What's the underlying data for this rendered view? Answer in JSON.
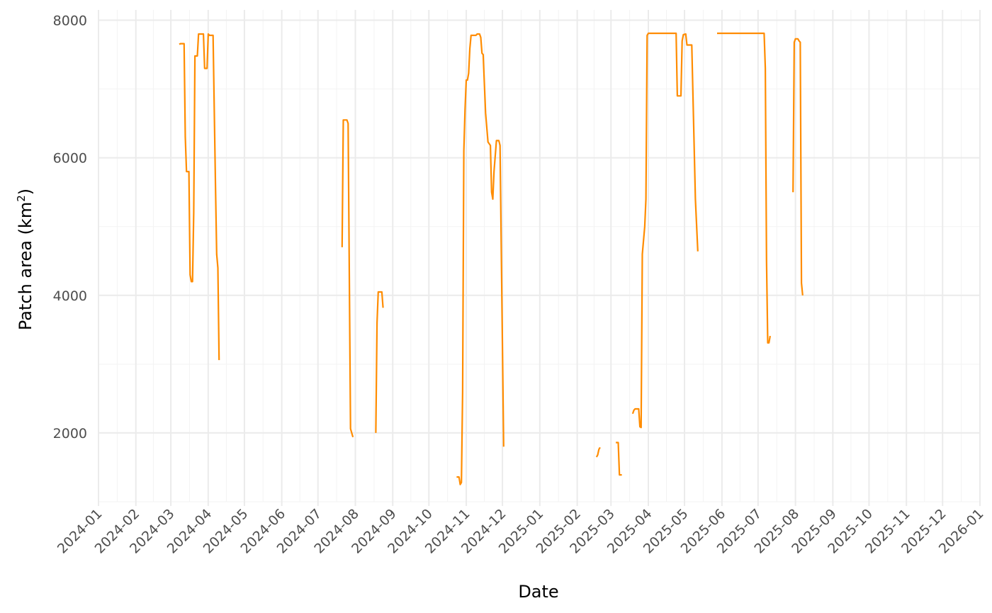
{
  "chart_data": {
    "type": "line",
    "title": "",
    "xlabel": "Date",
    "ylabel_main": "Patch area (km",
    "ylabel_sup": "2",
    "ylabel_close": ")",
    "xlim": [
      "2024-01-01",
      "2026-01-01"
    ],
    "ylim": [
      1000,
      8150
    ],
    "y_ticks": [
      2000,
      4000,
      6000,
      8000
    ],
    "y_minor_ticks": [
      1000,
      3000,
      5000,
      7000
    ],
    "x_tick_labels": [
      "2024-01",
      "2024-02",
      "2024-03",
      "2024-04",
      "2024-05",
      "2024-06",
      "2024-07",
      "2024-08",
      "2024-09",
      "2024-10",
      "2024-11",
      "2024-12",
      "2025-01",
      "2025-02",
      "2025-03",
      "2025-04",
      "2025-05",
      "2025-06",
      "2025-07",
      "2025-08",
      "2025-09",
      "2025-10",
      "2025-11",
      "2025-12",
      "2026-01"
    ],
    "grid": true,
    "legend": "none",
    "line_color": "#ff8c00",
    "segments": [
      [
        [
          "2024-03-08",
          7650
        ],
        [
          "2024-03-09",
          7660
        ],
        [
          "2024-03-12",
          7660
        ],
        [
          "2024-03-13",
          6300
        ],
        [
          "2024-03-14",
          5800
        ],
        [
          "2024-03-16",
          5800
        ],
        [
          "2024-03-17",
          4300
        ],
        [
          "2024-03-18",
          4200
        ],
        [
          "2024-03-19",
          4200
        ],
        [
          "2024-03-20",
          5200
        ],
        [
          "2024-03-21",
          7480
        ],
        [
          "2024-03-23",
          7480
        ],
        [
          "2024-03-24",
          7800
        ],
        [
          "2024-03-28",
          7800
        ],
        [
          "2024-03-29",
          7300
        ],
        [
          "2024-03-31",
          7300
        ],
        [
          "2024-04-01",
          7800
        ],
        [
          "2024-04-02",
          7780
        ],
        [
          "2024-04-05",
          7780
        ],
        [
          "2024-04-07",
          5600
        ],
        [
          "2024-04-08",
          4600
        ],
        [
          "2024-04-09",
          4400
        ],
        [
          "2024-04-10",
          3060
        ]
      ],
      [
        [
          "2024-07-21",
          4700
        ],
        [
          "2024-07-22",
          6550
        ],
        [
          "2024-07-25",
          6550
        ],
        [
          "2024-07-26",
          6500
        ],
        [
          "2024-07-28",
          2060
        ],
        [
          "2024-07-30",
          1940
        ]
      ],
      [
        [
          "2024-08-18",
          2000
        ],
        [
          "2024-08-19",
          3600
        ],
        [
          "2024-08-20",
          4050
        ],
        [
          "2024-08-23",
          4050
        ],
        [
          "2024-08-24",
          3820
        ]
      ],
      [
        [
          "2024-10-24",
          1360
        ],
        [
          "2024-10-26",
          1360
        ],
        [
          "2024-10-27",
          1250
        ],
        [
          "2024-10-28",
          1280
        ],
        [
          "2024-10-29",
          2600
        ],
        [
          "2024-10-30",
          6100
        ],
        [
          "2024-10-31",
          6700
        ],
        [
          "2024-11-01",
          7130
        ],
        [
          "2024-11-02",
          7130
        ],
        [
          "2024-11-03",
          7230
        ],
        [
          "2024-11-04",
          7590
        ],
        [
          "2024-11-05",
          7780
        ],
        [
          "2024-11-09",
          7780
        ],
        [
          "2024-11-10",
          7800
        ],
        [
          "2024-11-12",
          7800
        ],
        [
          "2024-11-13",
          7750
        ],
        [
          "2024-11-14",
          7520
        ],
        [
          "2024-11-15",
          7500
        ],
        [
          "2024-11-17",
          6650
        ],
        [
          "2024-11-19",
          6230
        ],
        [
          "2024-11-21",
          6180
        ],
        [
          "2024-11-22",
          5500
        ],
        [
          "2024-11-23",
          5400
        ],
        [
          "2024-11-24",
          5800
        ],
        [
          "2024-11-26",
          6250
        ],
        [
          "2024-11-28",
          6250
        ],
        [
          "2024-11-29",
          6180
        ],
        [
          "2024-12-02",
          1800
        ]
      ],
      [
        [
          "2025-02-17",
          1650
        ],
        [
          "2025-02-18",
          1680
        ],
        [
          "2025-02-19",
          1760
        ],
        [
          "2025-02-20",
          1790
        ]
      ],
      [
        [
          "2025-03-05",
          1860
        ],
        [
          "2025-03-07",
          1860
        ],
        [
          "2025-03-08",
          1390
        ],
        [
          "2025-03-10",
          1390
        ]
      ],
      [
        [
          "2025-03-19",
          2280
        ],
        [
          "2025-03-20",
          2330
        ],
        [
          "2025-03-21",
          2350
        ],
        [
          "2025-03-24",
          2350
        ],
        [
          "2025-03-25",
          2090
        ],
        [
          "2025-03-26",
          2080
        ],
        [
          "2025-03-27",
          4600
        ],
        [
          "2025-03-29",
          5000
        ],
        [
          "2025-03-30",
          5400
        ],
        [
          "2025-03-31",
          7780
        ],
        [
          "2025-04-01",
          7810
        ],
        [
          "2025-04-24",
          7810
        ],
        [
          "2025-04-25",
          6900
        ],
        [
          "2025-04-28",
          6900
        ],
        [
          "2025-04-29",
          7700
        ],
        [
          "2025-04-30",
          7790
        ],
        [
          "2025-05-02",
          7800
        ],
        [
          "2025-05-03",
          7640
        ],
        [
          "2025-05-07",
          7640
        ],
        [
          "2025-05-10",
          5400
        ],
        [
          "2025-05-12",
          4640
        ]
      ],
      [
        [
          "2025-05-28",
          7810
        ],
        [
          "2025-07-06",
          7810
        ],
        [
          "2025-07-07",
          7300
        ],
        [
          "2025-07-08",
          4500
        ],
        [
          "2025-07-09",
          3310
        ],
        [
          "2025-07-10",
          3310
        ],
        [
          "2025-07-11",
          3410
        ]
      ],
      [
        [
          "2025-07-30",
          5500
        ],
        [
          "2025-07-31",
          7680
        ],
        [
          "2025-08-01",
          7730
        ],
        [
          "2025-08-03",
          7730
        ],
        [
          "2025-08-04",
          7700
        ],
        [
          "2025-08-05",
          7680
        ],
        [
          "2025-08-06",
          4180
        ],
        [
          "2025-08-07",
          4000
        ]
      ]
    ]
  }
}
